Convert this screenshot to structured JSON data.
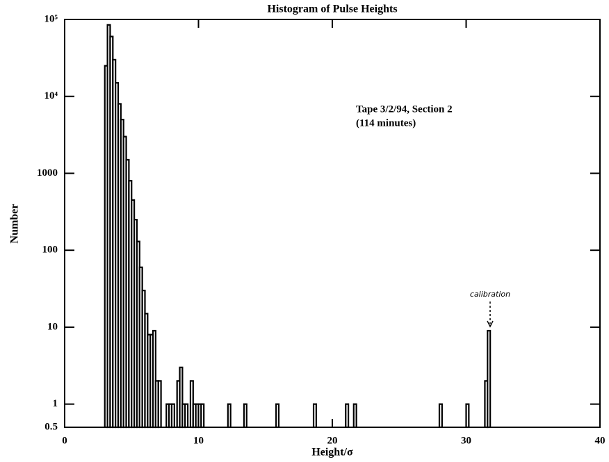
{
  "chart_data": {
    "type": "histogram",
    "title": "Histogram of Pulse Heights",
    "xlabel": "Height/σ",
    "ylabel": "Number",
    "annotations": [
      "Tape 3/2/94, Section 2",
      "(114 minutes)",
      "calibration"
    ],
    "bins": [
      3,
      3.2,
      3.4,
      3.6,
      3.8,
      4,
      4.2,
      4.4,
      4.6,
      4.8,
      5,
      5.2,
      5.4,
      5.6,
      5.8,
      6,
      6.2,
      6.4,
      6.6,
      6.8,
      7,
      7.2,
      7.6,
      7.8,
      8,
      8.2,
      8.4,
      8.6,
      8.8,
      9,
      9.2,
      9.4,
      9.6,
      9.8,
      10,
      10.2,
      10.4,
      12.2,
      12.4,
      13.4,
      13.6,
      15.8,
      16,
      18.6,
      18.8,
      21,
      21.2,
      21.6,
      21.8,
      28,
      28.2,
      30,
      30.2,
      31.4,
      31.6,
      31.8
    ],
    "values": [
      25000,
      85000,
      60000,
      30000,
      15000,
      8000,
      5000,
      3000,
      1500,
      800,
      450,
      250,
      130,
      60,
      30,
      15,
      8,
      8,
      9,
      2,
      2,
      0,
      1,
      1,
      1,
      0,
      2,
      3,
      1,
      1,
      0,
      2,
      1,
      1,
      1,
      1,
      0,
      1,
      0,
      1,
      0,
      1,
      0,
      1,
      0,
      1,
      0,
      1,
      0,
      1,
      0,
      1,
      0,
      2,
      9
    ],
    "color": "#000000",
    "log_y": true,
    "xlim": [
      0,
      40
    ],
    "xticks": [
      0,
      10,
      20,
      30,
      40
    ],
    "ylim": [
      0.5,
      100000
    ],
    "yticks": [
      {
        "value": 100000,
        "label": "10⁵"
      },
      {
        "value": 10000,
        "label": "10⁴"
      },
      1000,
      100,
      10,
      1,
      0.5
    ]
  }
}
